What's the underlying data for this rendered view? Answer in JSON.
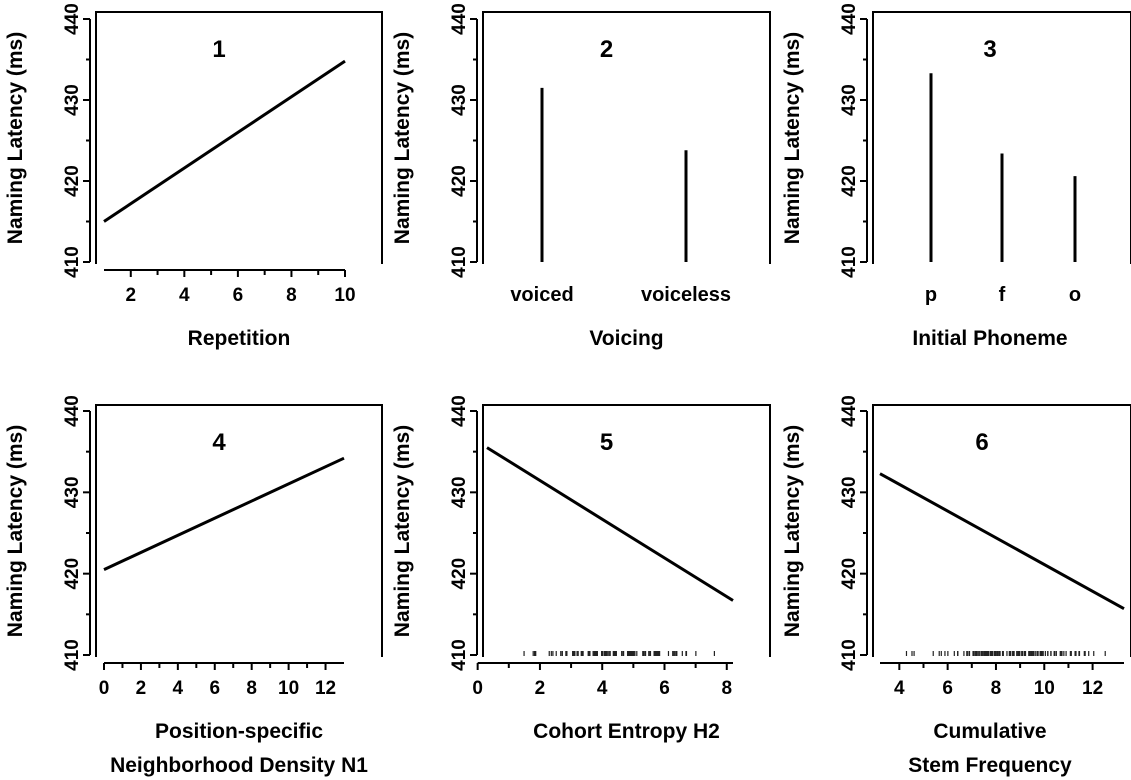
{
  "chart_data": [
    {
      "type": "line",
      "panel_label": "1",
      "xlabel": [
        "Repetition"
      ],
      "ylabel": "Naming Latency (ms)",
      "xlim": [
        1,
        10
      ],
      "ylim": [
        410,
        440
      ],
      "xticks": [
        2,
        4,
        6,
        8,
        10
      ],
      "yticks": [
        410,
        420,
        430,
        440
      ],
      "x": [
        1,
        10
      ],
      "y": [
        415,
        434.8
      ]
    },
    {
      "type": "bar",
      "panel_label": "2",
      "xlabel": [
        "Voicing"
      ],
      "ylabel": "Naming Latency (ms)",
      "categories": [
        "voiced",
        "voiceless"
      ],
      "values": [
        431.5,
        423.8
      ],
      "ylim": [
        410,
        440
      ],
      "yticks": [
        410,
        420,
        430,
        440
      ]
    },
    {
      "type": "bar",
      "panel_label": "3",
      "xlabel": [
        "Initial Phoneme"
      ],
      "ylabel": "Naming Latency (ms)",
      "categories": [
        "p",
        "f",
        "o"
      ],
      "values": [
        433.3,
        423.4,
        420.6
      ],
      "ylim": [
        410,
        440
      ],
      "yticks": [
        410,
        420,
        430,
        440
      ]
    },
    {
      "type": "line",
      "panel_label": "4",
      "xlabel": [
        "Position-specific",
        "Neighborhood Density N1"
      ],
      "ylabel": "Naming Latency (ms)",
      "xlim": [
        0,
        13
      ],
      "ylim": [
        410,
        440
      ],
      "xticks": [
        0,
        2,
        4,
        6,
        8,
        10,
        12
      ],
      "yticks": [
        410,
        420,
        430,
        440
      ],
      "x": [
        0,
        13
      ],
      "y": [
        420.5,
        434.2
      ]
    },
    {
      "type": "line",
      "panel_label": "5",
      "xlabel": [
        "Cohort Entropy H2"
      ],
      "ylabel": "Naming Latency (ms)",
      "xlim": [
        0.3,
        8.2
      ],
      "ylim": [
        410,
        440
      ],
      "xticks": [
        0,
        2,
        4,
        6,
        8
      ],
      "yticks": [
        410,
        420,
        430,
        440
      ],
      "x": [
        0.3,
        8.2
      ],
      "y": [
        435.5,
        416.7
      ],
      "rug": true
    },
    {
      "type": "line",
      "panel_label": "6",
      "xlabel": [
        "Cumulative",
        "Stem Frequency"
      ],
      "ylabel": "Naming Latency (ms)",
      "xlim": [
        3.2,
        13.3
      ],
      "ylim": [
        410,
        440
      ],
      "xticks": [
        4,
        6,
        8,
        10,
        12
      ],
      "yticks": [
        410,
        420,
        430,
        440
      ],
      "x": [
        3.2,
        13.3
      ],
      "y": [
        432.3,
        415.7
      ],
      "rug": true
    }
  ]
}
